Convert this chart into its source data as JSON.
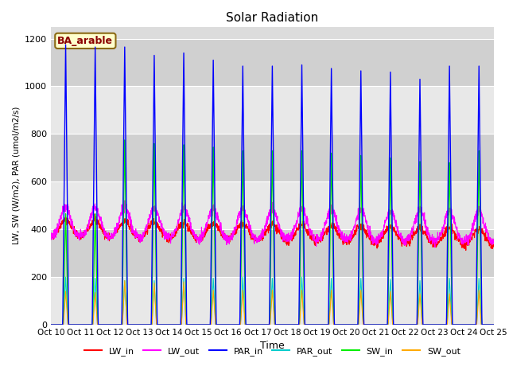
{
  "title": "Solar Radiation",
  "ylabel": "LW, SW (W/m2), PAR (umol/m2/s)",
  "xlabel": "Time",
  "ylim": [
    0,
    1250
  ],
  "yticks": [
    0,
    200,
    400,
    600,
    800,
    1000,
    1200
  ],
  "background_color": "#dcdcdc",
  "site_label": "BA_arable",
  "legend": {
    "LW_in": "#ff0000",
    "LW_out": "#ff00ff",
    "PAR_in": "#0000ff",
    "PAR_out": "#00cccc",
    "SW_in": "#00ee00",
    "SW_out": "#ffaa00"
  },
  "n_days": 15,
  "pts_per_day": 144,
  "lw_in_night": 360,
  "lw_in_day_add": 80,
  "lw_out_night": 365,
  "lw_out_day_add": 130,
  "par_in_peaks": [
    1175,
    1165,
    1165,
    1130,
    1140,
    1110,
    1085,
    1085,
    1090,
    1075,
    1065,
    1060,
    1030,
    1085,
    1085
  ],
  "par_out_peaks": [
    200,
    195,
    185,
    185,
    195,
    195,
    200,
    195,
    200,
    195,
    195,
    190,
    185,
    195,
    195
  ],
  "sw_in_peaks": [
    465,
    465,
    775,
    760,
    755,
    745,
    730,
    730,
    730,
    720,
    710,
    700,
    685,
    680,
    730
  ],
  "sw_out_peaks": [
    140,
    135,
    185,
    175,
    180,
    145,
    145,
    145,
    145,
    145,
    145,
    140,
    130,
    130,
    145
  ],
  "lw_in_trend_drop": 40,
  "lw_out_trend_drop": 20,
  "tick_labels": [
    "Oct 10",
    "Oct 11",
    "Oct 12",
    "Oct 13",
    "Oct 14",
    "Oct 15",
    "Oct 16",
    "Oct 17",
    "Oct 18",
    "Oct 19",
    "Oct 20",
    "Oct 21",
    "Oct 22",
    "Oct 23",
    "Oct 24",
    "Oct 25"
  ]
}
